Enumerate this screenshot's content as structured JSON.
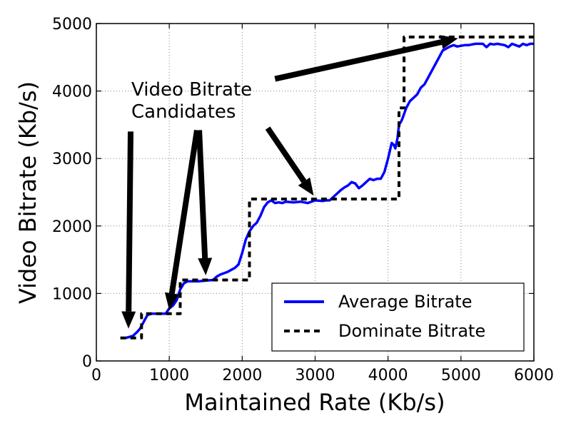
{
  "chart_data": {
    "type": "line",
    "title": "",
    "xlabel": "Maintained Rate (Kb/s)",
    "ylabel": "Video Bitrate (Kb/s)",
    "xlim": [
      0,
      6000
    ],
    "ylim": [
      0,
      5000
    ],
    "x_ticks": [
      0,
      1000,
      2000,
      3000,
      4000,
      5000,
      6000
    ],
    "y_ticks": [
      0,
      1000,
      2000,
      3000,
      4000,
      5000
    ],
    "x_tick_labels": [
      "0",
      "1000",
      "2000",
      "3000",
      "4000",
      "5000",
      "6000"
    ],
    "y_tick_labels": [
      "0",
      "1000",
      "2000",
      "3000",
      "4000",
      "5000"
    ],
    "grid": true,
    "legend_position": "bottom-right",
    "series": [
      {
        "name": "Average Bitrate",
        "color": "#0000ff",
        "style": "solid",
        "x": [
          330,
          400,
          500,
          560,
          600,
          650,
          700,
          750,
          800,
          850,
          900,
          950,
          1000,
          1050,
          1100,
          1150,
          1200,
          1250,
          1300,
          1400,
          1500,
          1600,
          1650,
          1700,
          1750,
          1800,
          1850,
          1900,
          1950,
          2000,
          2050,
          2100,
          2150,
          2200,
          2250,
          2300,
          2350,
          2400,
          2450,
          2500,
          2550,
          2600,
          2700,
          2800,
          2900,
          3000,
          3100,
          3150,
          3200,
          3300,
          3350,
          3400,
          3450,
          3500,
          3550,
          3600,
          3650,
          3700,
          3750,
          3800,
          3850,
          3900,
          3950,
          4000,
          4050,
          4080,
          4100,
          4130,
          4150,
          4180,
          4200,
          4250,
          4300,
          4350,
          4400,
          4450,
          4500,
          4550,
          4600,
          4650,
          4700,
          4750,
          4800,
          4850,
          4900,
          4950,
          5000,
          5050,
          5100,
          5200,
          5300,
          5350,
          5400,
          5450,
          5500,
          5600,
          5650,
          5700,
          5750,
          5800,
          5850,
          5900,
          5950,
          6000
        ],
        "y": [
          340,
          340,
          370,
          430,
          480,
          580,
          680,
          700,
          700,
          700,
          700,
          700,
          780,
          820,
          900,
          1060,
          1150,
          1180,
          1180,
          1180,
          1190,
          1200,
          1250,
          1280,
          1300,
          1320,
          1350,
          1380,
          1430,
          1600,
          1800,
          1920,
          2000,
          2050,
          2150,
          2280,
          2350,
          2380,
          2340,
          2350,
          2340,
          2360,
          2350,
          2360,
          2340,
          2380,
          2370,
          2380,
          2380,
          2480,
          2530,
          2570,
          2600,
          2650,
          2630,
          2560,
          2600,
          2650,
          2700,
          2680,
          2700,
          2700,
          2800,
          3000,
          3230,
          3200,
          3150,
          3300,
          3500,
          3550,
          3600,
          3750,
          3850,
          3900,
          3950,
          4050,
          4100,
          4200,
          4300,
          4400,
          4500,
          4600,
          4630,
          4660,
          4680,
          4660,
          4670,
          4680,
          4680,
          4700,
          4700,
          4650,
          4700,
          4690,
          4700,
          4680,
          4650,
          4700,
          4680,
          4660,
          4700,
          4680,
          4700,
          4700
        ]
      },
      {
        "name": "Dominate Bitrate",
        "color": "#000000",
        "style": "dashed",
        "x": [
          330,
          620,
          620,
          1150,
          1150,
          2100,
          2100,
          4150,
          4150,
          4220,
          4220,
          6000
        ],
        "y": [
          340,
          340,
          700,
          700,
          1200,
          1200,
          2400,
          2400,
          3750,
          3750,
          4800,
          4800
        ]
      }
    ],
    "annotations": [
      {
        "text_lines": [
          "Video Bitrate",
          "Candidates"
        ],
        "arrows": [
          {
            "from": [
              470,
              3400
            ],
            "to": [
              440,
              480
            ]
          },
          {
            "from": [
              1380,
              3420
            ],
            "to": [
              1000,
              750
            ]
          },
          {
            "from": [
              1410,
              3420
            ],
            "to": [
              1500,
              1270
            ]
          },
          {
            "from": [
              2350,
              3450
            ],
            "to": [
              2980,
              2450
            ]
          },
          {
            "from": [
              2450,
              4180
            ],
            "to": [
              4960,
              4780
            ]
          }
        ]
      }
    ]
  }
}
